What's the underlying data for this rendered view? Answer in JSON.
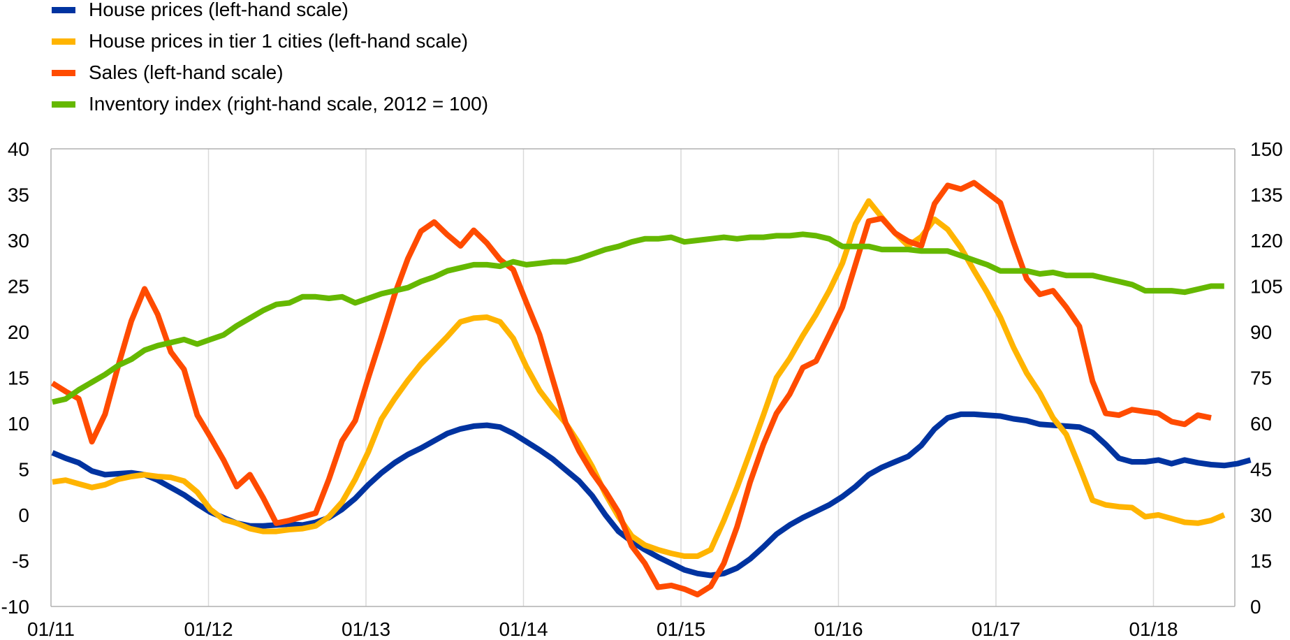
{
  "chart_data": {
    "type": "line",
    "title": "",
    "legend_position": "top-left",
    "grid": true,
    "colors": {
      "house_prices": "#0033a0",
      "tier1": "#ffb400",
      "sales": "#ff4b00",
      "inventory": "#65b800",
      "axis": "#b0b0b0",
      "grid": "#d9d9d9"
    },
    "x_ticks": [
      "01/11",
      "01/12",
      "01/13",
      "01/14",
      "01/15",
      "01/16",
      "01/17",
      "01/18"
    ],
    "y_left": {
      "min": -10,
      "max": 40,
      "ticks": [
        "40",
        "35",
        "30",
        "25",
        "20",
        "15",
        "10",
        "5",
        "0",
        "-5",
        "-10"
      ]
    },
    "y_right": {
      "min": 0,
      "max": 150,
      "ticks": [
        "150",
        "135",
        "120",
        "105",
        "90",
        "75",
        "60",
        "45",
        "30",
        "15",
        "0"
      ]
    },
    "series": [
      {
        "key": "house_prices",
        "name": "House prices (left-hand scale)",
        "axis": "left",
        "start": "01/11",
        "values": [
          6.8,
          6.2,
          5.7,
          4.8,
          4.4,
          4.5,
          4.6,
          4.4,
          3.8,
          3,
          2.2,
          1.2,
          0.3,
          -0.3,
          -0.9,
          -1.2,
          -1.2,
          -1.1,
          -1,
          -1.1,
          -0.8,
          -0.3,
          0.6,
          1.8,
          3.3,
          4.6,
          5.7,
          6.6,
          7.3,
          8.1,
          8.9,
          9.4,
          9.7,
          9.8,
          9.6,
          8.9,
          8,
          7.1,
          6.1,
          4.9,
          3.7,
          2.1,
          0,
          -1.8,
          -2.9,
          -3.8,
          -4.6,
          -5.3,
          -6,
          -6.4,
          -6.6,
          -6.4,
          -5.8,
          -4.8,
          -3.5,
          -2.1,
          -1.1,
          -0.3,
          0.4,
          1.1,
          2,
          3.1,
          4.4,
          5.2,
          5.8,
          6.4,
          7.6,
          9.4,
          10.6,
          11,
          11,
          10.9,
          10.8,
          10.5,
          10.3,
          9.9,
          9.8,
          9.7,
          9.6,
          9,
          7.7,
          6.2,
          5.8,
          5.8,
          6,
          5.6,
          6,
          5.7,
          5.5,
          5.4,
          5.6,
          6
        ]
      },
      {
        "key": "tier1",
        "name": "House prices in tier 1 cities (left-hand scale)",
        "axis": "left",
        "start": "01/11",
        "values": [
          3.6,
          3.8,
          3.4,
          3,
          3.3,
          3.9,
          4.2,
          4.4,
          4.2,
          4.1,
          3.7,
          2.5,
          0.6,
          -0.5,
          -0.9,
          -1.5,
          -1.8,
          -1.8,
          -1.6,
          -1.5,
          -1.2,
          -0.2,
          1.4,
          3.9,
          6.9,
          10.5,
          12.7,
          14.7,
          16.5,
          18,
          19.5,
          21.1,
          21.5,
          21.6,
          21.1,
          19.3,
          16.2,
          13.6,
          11.7,
          10,
          7.8,
          5.3,
          2.3,
          -0.2,
          -2.3,
          -3.3,
          -3.8,
          -4.2,
          -4.5,
          -4.5,
          -3.8,
          -0.6,
          3,
          6.9,
          10.9,
          15,
          17.1,
          19.6,
          21.9,
          24.5,
          27.5,
          31.8,
          34.3,
          32.5,
          30.8,
          29.4,
          30.4,
          32.3,
          31.2,
          29.2,
          26.7,
          24.3,
          21.6,
          18.3,
          15.5,
          13.3,
          10.6,
          8.8,
          5.3,
          1.6,
          1.1,
          0.9,
          0.8,
          -0.2,
          0,
          -0.4,
          -0.8,
          -0.9,
          -0.6,
          0
        ]
      },
      {
        "key": "sales",
        "name": "Sales (left-hand scale)",
        "axis": "left",
        "start": "01/11",
        "values": [
          14.4,
          13.5,
          12.7,
          8,
          11,
          16.3,
          21.2,
          24.7,
          21.9,
          17.8,
          15.9,
          10.9,
          8.5,
          6,
          3.1,
          4.4,
          1.9,
          -0.9,
          -0.6,
          -0.2,
          0.2,
          3.9,
          8.1,
          10.3,
          15,
          19.5,
          24.1,
          28,
          31,
          32,
          30.6,
          29.4,
          31.1,
          29.7,
          27.9,
          26.8,
          23.2,
          19.7,
          14.8,
          10,
          7,
          4.6,
          2.6,
          0.3,
          -3.4,
          -5.3,
          -7.9,
          -7.7,
          -8.1,
          -8.7,
          -7.8,
          -5.3,
          -1.3,
          3.6,
          7.7,
          11.1,
          13.2,
          16.1,
          16.8,
          19.7,
          22.7,
          27.4,
          32.1,
          32.4,
          30.8,
          29.9,
          29.4,
          34,
          36,
          35.6,
          36.3,
          35.2,
          34.1,
          29.8,
          25.8,
          24.1,
          24.5,
          22.7,
          20.6,
          14.6,
          11.1,
          10.9,
          11.5,
          11.3,
          11.1,
          10.2,
          9.9,
          10.9,
          10.6
        ]
      },
      {
        "key": "inventory",
        "name": "Inventory index (right-hand scale, 2012 = 100)",
        "axis": "right",
        "start": "01/11",
        "values": [
          67,
          68,
          71,
          73.5,
          76,
          79,
          81,
          84,
          85.5,
          86.5,
          87.5,
          86,
          87.5,
          89,
          92,
          94.5,
          97,
          99,
          99.5,
          101.5,
          101.5,
          101,
          101.5,
          99.5,
          101,
          102.5,
          103.5,
          104.5,
          106.5,
          108,
          110,
          111,
          112,
          112,
          111.5,
          113,
          112,
          112.5,
          113,
          113,
          114,
          115.5,
          117,
          118,
          119.5,
          120.5,
          120.5,
          121,
          119.5,
          120,
          120.5,
          121,
          120.5,
          121,
          121,
          121.5,
          121.5,
          122,
          121.5,
          120.5,
          118,
          118,
          118,
          117,
          117,
          117,
          116.5,
          116.5,
          116.5,
          115,
          113.5,
          112,
          110,
          110,
          110,
          109,
          109.5,
          108.5,
          108.5,
          108.5,
          107.5,
          106.5,
          105.5,
          103.5,
          103.5,
          103.5,
          103,
          104,
          105,
          105
        ]
      }
    ]
  }
}
